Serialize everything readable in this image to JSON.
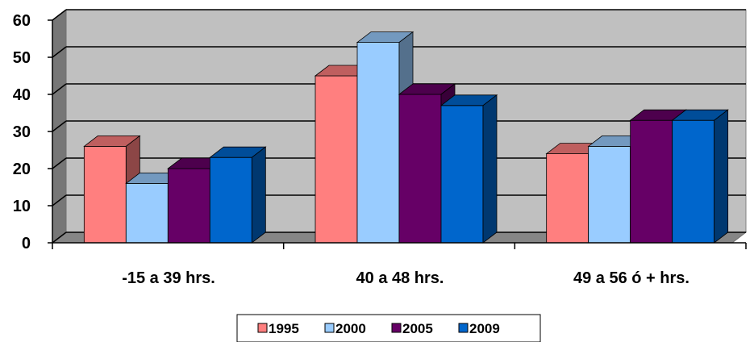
{
  "chart_data": {
    "type": "bar",
    "categories": [
      "-15 a 39 hrs.",
      "40 a 48 hrs.",
      "49 a 56 ó + hrs."
    ],
    "series": [
      {
        "name": "1995",
        "values": [
          26,
          45,
          24
        ],
        "color": "#FF7F7F"
      },
      {
        "name": "2000",
        "values": [
          16,
          54,
          26
        ],
        "color": "#99CCFF"
      },
      {
        "name": "2005",
        "values": [
          20,
          40,
          33
        ],
        "color": "#660066"
      },
      {
        "name": "2009",
        "values": [
          23,
          37,
          33
        ],
        "color": "#0066CC"
      }
    ],
    "yticks": [
      "0",
      "10",
      "20",
      "30",
      "40",
      "50",
      "60"
    ],
    "ylim": [
      0,
      60
    ],
    "grid": true,
    "legend_position": "bottom",
    "three_d": true,
    "wall_color": "#C0C0C0"
  }
}
